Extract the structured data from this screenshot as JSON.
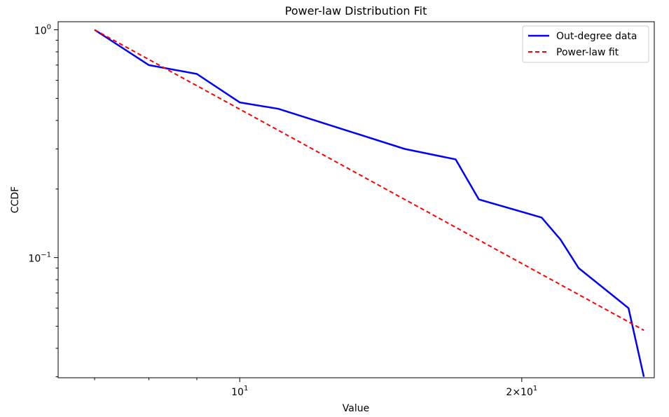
{
  "chart_data": {
    "type": "line",
    "title": "Power-law Distribution Fit",
    "xlabel": "Value",
    "ylabel": "CCDF",
    "x_scale": "log",
    "y_scale": "log",
    "xlim": [
      6.4,
      27.7
    ],
    "ylim": [
      0.0297,
      1.085
    ],
    "grid": false,
    "legend_position": "top-right",
    "x_ticks": [
      {
        "value": 10,
        "base": "10",
        "exp": "1"
      },
      {
        "value": 20,
        "base": "2×10",
        "exp": "1"
      }
    ],
    "y_ticks": [
      {
        "value": 1,
        "base": "10",
        "exp": "0"
      },
      {
        "value": 0.1,
        "base": "10",
        "exp": "−1"
      }
    ],
    "x_minor_ticks": [
      7,
      8,
      9,
      30
    ],
    "series": [
      {
        "name": "Out-degree data",
        "color": "#0000ff",
        "style": "solid",
        "x": [
          7,
          8,
          9,
          10,
          11,
          15,
          17,
          18,
          21,
          22,
          23,
          26,
          27
        ],
        "y": [
          1.0,
          0.7,
          0.64,
          0.48,
          0.45,
          0.3,
          0.27,
          0.18,
          0.15,
          0.12,
          0.09,
          0.06,
          0.03
        ]
      },
      {
        "name": "Power-law fit",
        "color": "#ff0000",
        "style": "dashed",
        "x": [
          7,
          27
        ],
        "y": [
          1.0,
          0.048
        ]
      }
    ]
  }
}
